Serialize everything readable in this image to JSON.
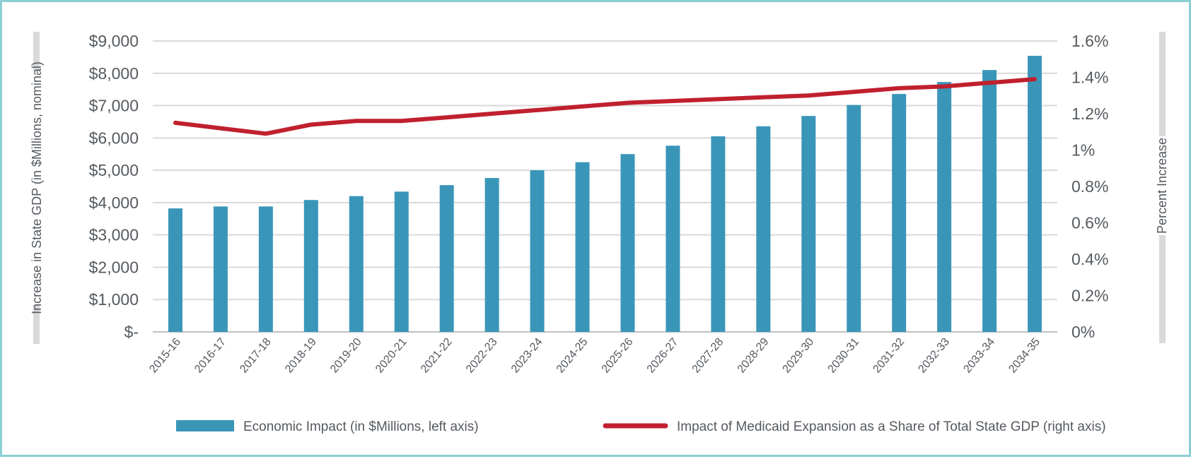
{
  "chart_data": {
    "type": "bar",
    "categories": [
      "2015-16",
      "2016-17",
      "2017-18",
      "2018-19",
      "2019-20",
      "2020-21",
      "2021-22",
      "2022-23",
      "2023-24",
      "2024-25",
      "2025-26",
      "2026-27",
      "2027-28",
      "2028-29",
      "2029-30",
      "2030-31",
      "2031-32",
      "2032-33",
      "2033-34",
      "2034-35"
    ],
    "series": [
      {
        "name": "Economic Impact (in $Millions, left axis)",
        "type": "bar",
        "axis": "left",
        "color": "#3a96b9",
        "values": [
          3820,
          3880,
          3880,
          4080,
          4200,
          4340,
          4540,
          4760,
          5000,
          5250,
          5500,
          5760,
          6050,
          6360,
          6680,
          7020,
          7360,
          7730,
          8100,
          8540
        ]
      },
      {
        "name": "Impact of Medicaid Expansion as a Share of Total State GDP (right axis)",
        "type": "line",
        "axis": "right",
        "color": "#c0202e",
        "values": [
          1.15,
          1.12,
          1.09,
          1.14,
          1.16,
          1.16,
          1.18,
          1.2,
          1.22,
          1.24,
          1.26,
          1.27,
          1.28,
          1.29,
          1.3,
          1.32,
          1.34,
          1.35,
          1.37,
          1.39
        ]
      }
    ],
    "ylabel": "Increase in State GDP (in $Millions, nominal)",
    "y2label": "Percent Increase",
    "ylim": [
      0,
      9000
    ],
    "y2lim": [
      0,
      1.6
    ],
    "yticks": [
      "$-",
      "$1,000",
      "$2,000",
      "$3,000",
      "$4,000",
      "$5,000",
      "$6,000",
      "$7,000",
      "$8,000",
      "$9,000"
    ],
    "y2ticks": [
      "0%",
      "0.2%",
      "0.4%",
      "0.6%",
      "0.8%",
      "1%",
      "1.2%",
      "1.4%",
      "1.6%"
    ],
    "grid": true,
    "legend_position": "bottom"
  }
}
